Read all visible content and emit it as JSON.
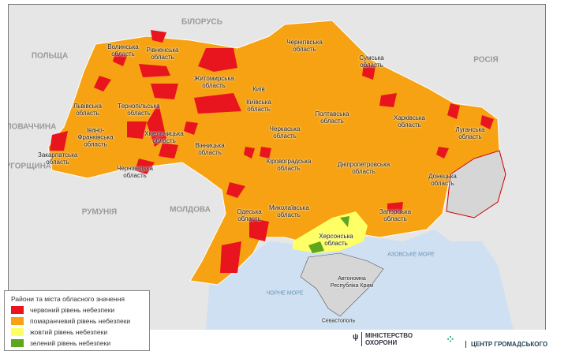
{
  "colors": {
    "red": "#e8141e",
    "orange": "#f7a212",
    "yellow": "#ffff66",
    "green": "#5ea61e",
    "land": "#e6e6e6",
    "sea": "#cfe0f2",
    "occupied": "#d6d6d6"
  },
  "countries": [
    "ПОЛЬЩА",
    "БІЛОРУСЬ",
    "РОСІЯ",
    "СЛОВАЧЧИНА",
    "УГОРЩИНА",
    "РУМУНІЯ",
    "МОЛДОВА"
  ],
  "seas": [
    "АЗОВСЬКЕ МОРЕ",
    "ЧОРНЕ МОРЕ"
  ],
  "regions": [
    "Волинська область",
    "Рівненська область",
    "Житомирська область",
    "Київ",
    "Київська область",
    "Чернігівська область",
    "Сумська область",
    "Харківська область",
    "Луганська область",
    "Донецька область",
    "Запорізька область",
    "Дніпропетровська область",
    "Полтавська область",
    "Черкаська область",
    "Кіровоградська область",
    "Миколаївська область",
    "Одеська область",
    "Херсонська область",
    "Вінницька область",
    "Хмельницька область",
    "Тернопільська область",
    "Львівська область",
    "Івано-Франківська область",
    "Закарпатська область",
    "Чернівецька область",
    "Автономна Республіка Крим",
    "Севастополь"
  ],
  "legend": {
    "title": "Райони та міста обласного значення",
    "items": [
      {
        "label": "червоний рівень небезпеки",
        "color": "#e8141e"
      },
      {
        "label": "помаранчевий рівень небезпеки",
        "color": "#f7a212"
      },
      {
        "label": "жовтий рівень небезпеки",
        "color": "#ffff66"
      },
      {
        "label": "зелений рівень небезпеки",
        "color": "#5ea61e"
      }
    ]
  },
  "footer": {
    "ministry": "МІНІСТЕРСТВО ОХОРОНИ",
    "center": "ЦЕНТР ГРОМАДСЬКОГО"
  }
}
